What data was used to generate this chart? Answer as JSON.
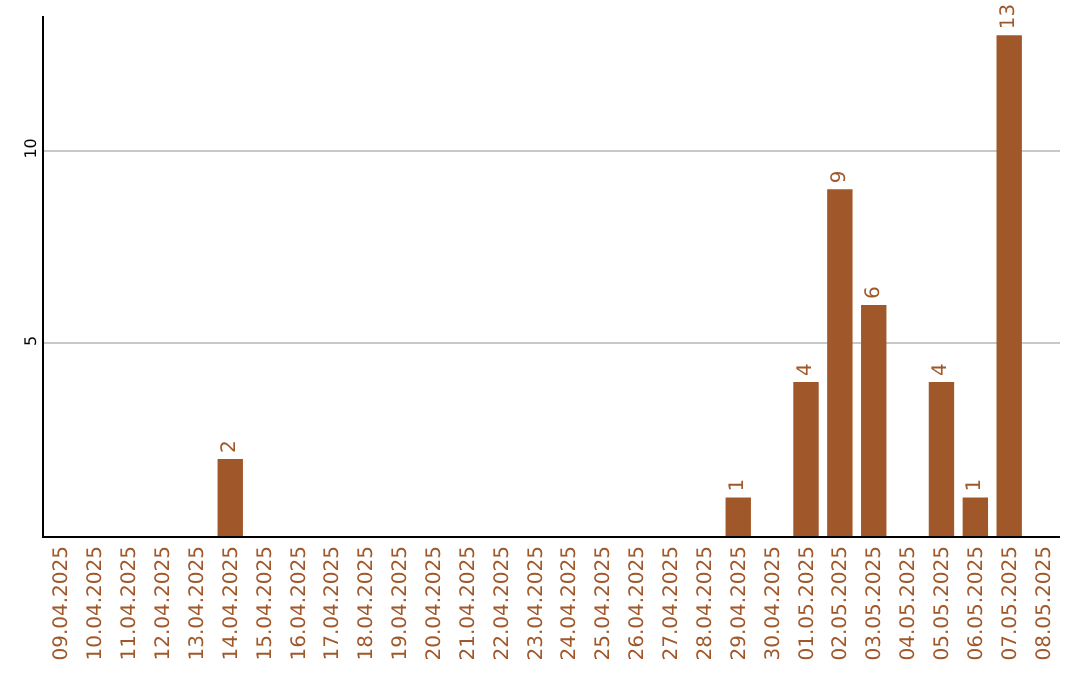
{
  "chart_data": {
    "type": "bar",
    "categories": [
      "09.04.2025",
      "10.04.2025",
      "11.04.2025",
      "12.04.2025",
      "13.04.2025",
      "14.04.2025",
      "15.04.2025",
      "16.04.2025",
      "17.04.2025",
      "18.04.2025",
      "19.04.2025",
      "20.04.2025",
      "21.04.2025",
      "22.04.2025",
      "23.04.2025",
      "24.04.2025",
      "25.04.2025",
      "26.04.2025",
      "27.04.2025",
      "28.04.2025",
      "29.04.2025",
      "30.04.2025",
      "01.05.2025",
      "02.05.2025",
      "03.05.2025",
      "04.05.2025",
      "05.05.2025",
      "06.05.2025",
      "07.05.2025",
      "08.05.2025"
    ],
    "values": [
      0,
      0,
      0,
      0,
      0,
      2,
      0,
      0,
      0,
      0,
      0,
      0,
      0,
      0,
      0,
      0,
      0,
      0,
      0,
      0,
      1,
      0,
      4,
      9,
      6,
      0,
      4,
      1,
      13,
      0
    ],
    "value_labels": [
      null,
      null,
      null,
      null,
      null,
      "2",
      null,
      null,
      null,
      null,
      null,
      null,
      null,
      null,
      null,
      null,
      null,
      null,
      null,
      null,
      "1",
      null,
      "4",
      "9",
      "6",
      null,
      "4",
      "1",
      "13",
      null
    ],
    "color": "#a0582a",
    "ylim": [
      0,
      13.5
    ],
    "yticks": [
      5,
      10
    ],
    "grid": "y"
  }
}
